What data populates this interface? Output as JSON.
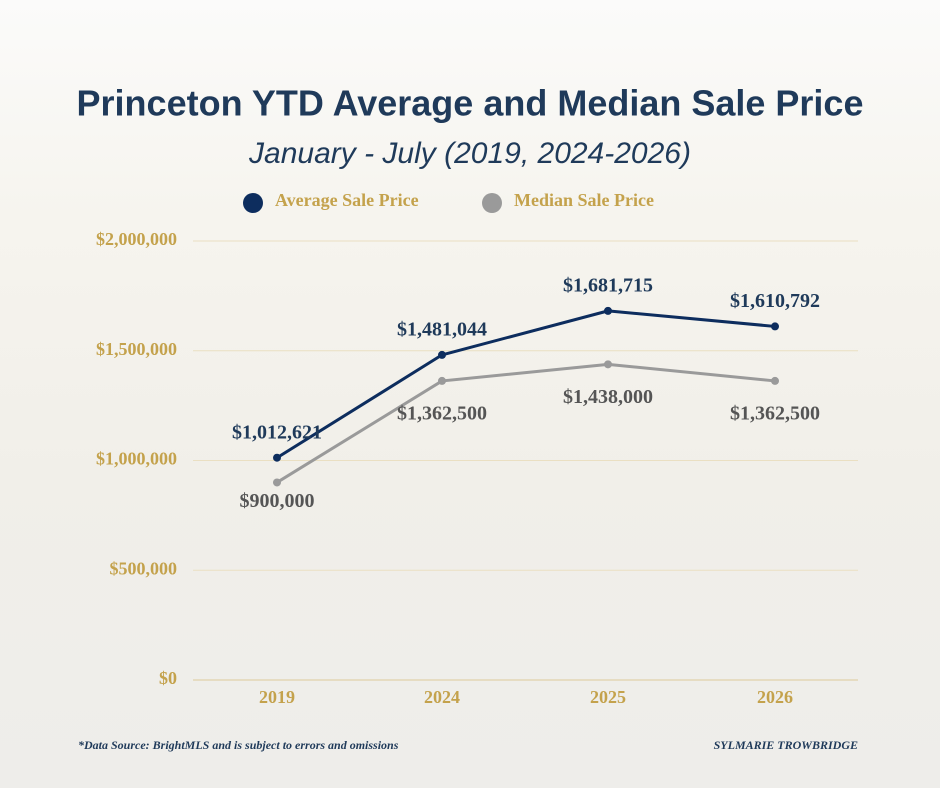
{
  "chart_data": {
    "type": "line",
    "title": "Princeton YTD Average and Median Sale Price",
    "subtitle": "January - July (2019, 2024-2026)",
    "categories": [
      "2019",
      "2024",
      "2025",
      "2026"
    ],
    "series": [
      {
        "name": "Average Sale Price",
        "color": "#0d2d5e",
        "label_color": "#1f3a5a",
        "values": [
          1012621,
          1481044,
          1681715,
          1610792
        ],
        "value_labels": [
          "$1,012,621",
          "$1,481,044",
          "$1,681,715",
          "$1,610,792"
        ]
      },
      {
        "name": "Median Sale Price",
        "color": "#9a9a9a",
        "label_color": "#555555",
        "values": [
          900000,
          1362500,
          1438000,
          1362500
        ],
        "value_labels": [
          "$900,000",
          "$1,362,500",
          "$1,438,000",
          "$1,362,500"
        ]
      }
    ],
    "ylim": [
      0,
      2000000
    ],
    "yticks": [
      {
        "value": 0,
        "label": "$0"
      },
      {
        "value": 500000,
        "label": "$500,000"
      },
      {
        "value": 1000000,
        "label": "$1,000,000"
      },
      {
        "value": 1500000,
        "label": "$1,500,000"
      },
      {
        "value": 2000000,
        "label": "$2,000,000"
      }
    ],
    "grid": true,
    "annotations": [
      "*Data Source: BrightMLS and is subject to errors and omissions",
      "SYLMARIE TROWBRIDGE"
    ]
  }
}
